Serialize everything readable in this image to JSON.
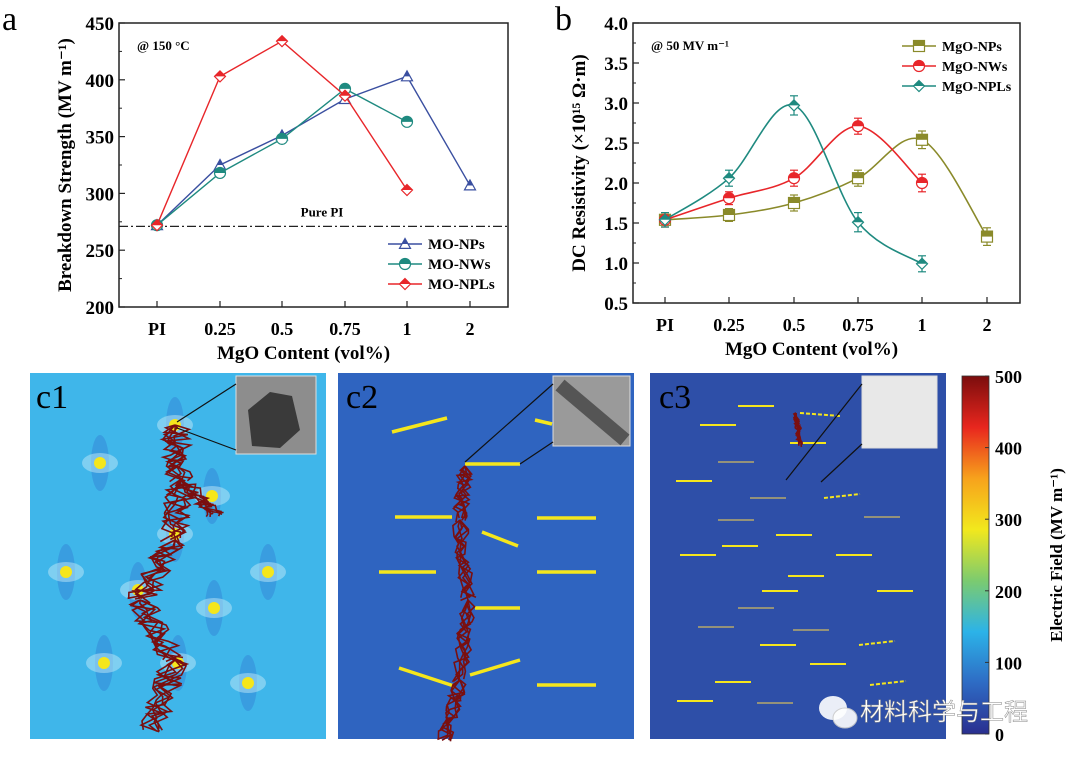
{
  "chart_data": [
    {
      "panel": "a",
      "type": "line",
      "annotation": "@ 150 °C",
      "xlabel": "MgO Content (vol%)",
      "ylabel": "Breakdown Strength (MV m⁻¹)",
      "categories": [
        "PI",
        "0.25",
        "0.5",
        "0.75",
        "1",
        "2"
      ],
      "yticks": [
        200,
        250,
        300,
        350,
        400,
        450
      ],
      "ylim": [
        200,
        450
      ],
      "reference_line": {
        "label": "Pure PI",
        "value": 271
      },
      "legend_position": "bottom-right",
      "series": [
        {
          "name": "MO-NPs",
          "color": "#3a4fa0",
          "marker": "triangle",
          "values": [
            272,
            325,
            351,
            383,
            403,
            307
          ]
        },
        {
          "name": "MO-NWs",
          "color": "#1f8a80",
          "marker": "circle",
          "values": [
            272,
            318,
            348,
            392,
            363,
            null
          ]
        },
        {
          "name": "MO-NPLs",
          "color": "#e8262a",
          "marker": "diamond",
          "values": [
            272,
            403,
            434,
            386,
            303,
            null
          ]
        }
      ]
    },
    {
      "panel": "b",
      "type": "line",
      "annotation": "@ 50 MV m⁻¹",
      "xlabel": "MgO  Content (vol%)",
      "ylabel": "DC Resistivity (×10¹⁵ Ω·m)",
      "categories": [
        "PI",
        "0.25",
        "0.5",
        "0.75",
        "1",
        "2"
      ],
      "yticks": [
        "0.5",
        "1.0",
        "1.5",
        "2.0",
        "2.5",
        "3.0",
        "3.5",
        "4.0"
      ],
      "ylim": [
        0.5,
        4.0
      ],
      "legend_position": "top-right",
      "series": [
        {
          "name": "MgO-NPs",
          "color": "#8a8a2a",
          "marker": "square",
          "values": [
            1.54,
            1.6,
            1.75,
            2.06,
            2.54,
            1.33
          ],
          "errors": [
            0.09,
            0.08,
            0.1,
            0.1,
            0.11,
            0.11
          ]
        },
        {
          "name": "MgO-NWs",
          "color": "#e8262a",
          "marker": "circle",
          "values": [
            1.54,
            1.81,
            2.06,
            2.71,
            2.0,
            null
          ],
          "errors": [
            0.09,
            0.08,
            0.1,
            0.1,
            0.11,
            null
          ]
        },
        {
          "name": "MgO-NPLs",
          "color": "#1f8a80",
          "marker": "diamond",
          "values": [
            1.54,
            2.06,
            2.97,
            1.51,
            0.99,
            null
          ],
          "errors": [
            0.09,
            0.1,
            0.12,
            0.12,
            0.1,
            null
          ]
        }
      ]
    }
  ],
  "panels": {
    "a_label": "a",
    "b_label": "b",
    "c1_label": "c1",
    "c2_label": "c2",
    "c3_label": "c3"
  },
  "colorbar": {
    "title": "Electric Field (MV m⁻¹)",
    "ticks": [
      "500",
      "400",
      "300",
      "200",
      "100",
      "0"
    ],
    "range": [
      0,
      500
    ],
    "colormap": [
      "#7b0d0d",
      "#e8261e",
      "#f7a21c",
      "#f2e81d",
      "#7ccb6f",
      "#2cb3e8",
      "#2e6bc4",
      "#2a2f8f"
    ]
  },
  "simulation_colors": {
    "c1_background": "#3fb6ea",
    "c2_background": "#2f64c0",
    "c3_background": "#2e4fa8",
    "filler": "#f5e61c",
    "breakdown_path": "#7a0f0f"
  },
  "watermark": "材料科学与工程"
}
